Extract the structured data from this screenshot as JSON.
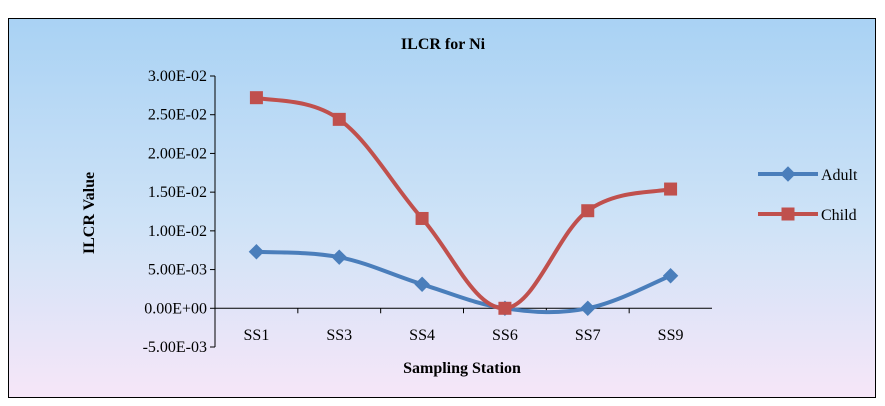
{
  "chart_data": {
    "type": "line",
    "title": "ILCR for Ni",
    "xlabel": "Sampling Station",
    "ylabel": "ILCR  Value",
    "categories": [
      "SS1",
      "SS3",
      "SS4",
      "SS6",
      "SS7",
      "SS9"
    ],
    "ylim": [
      -0.005,
      0.03
    ],
    "yticks": [
      "-5.00E-03",
      "0.00E+00",
      "5.00E-03",
      "1.00E-02",
      "1.50E-02",
      "2.00E-02",
      "2.50E-02",
      "3.00E-02"
    ],
    "yticks_values": [
      -0.005,
      0,
      0.005,
      0.01,
      0.015,
      0.02,
      0.025,
      0.03
    ],
    "grid": false,
    "legend": "right",
    "smooth": true,
    "series": [
      {
        "name": "Adult",
        "color": "#4a7ebb",
        "marker": "diamond",
        "values": [
          0.0073,
          0.0066,
          0.0031,
          0.0,
          0.0,
          0.0042
        ]
      },
      {
        "name": "Child",
        "color": "#c0504d",
        "marker": "square",
        "values": [
          0.0272,
          0.0244,
          0.0116,
          0.0,
          0.0126,
          0.0154
        ]
      }
    ]
  }
}
